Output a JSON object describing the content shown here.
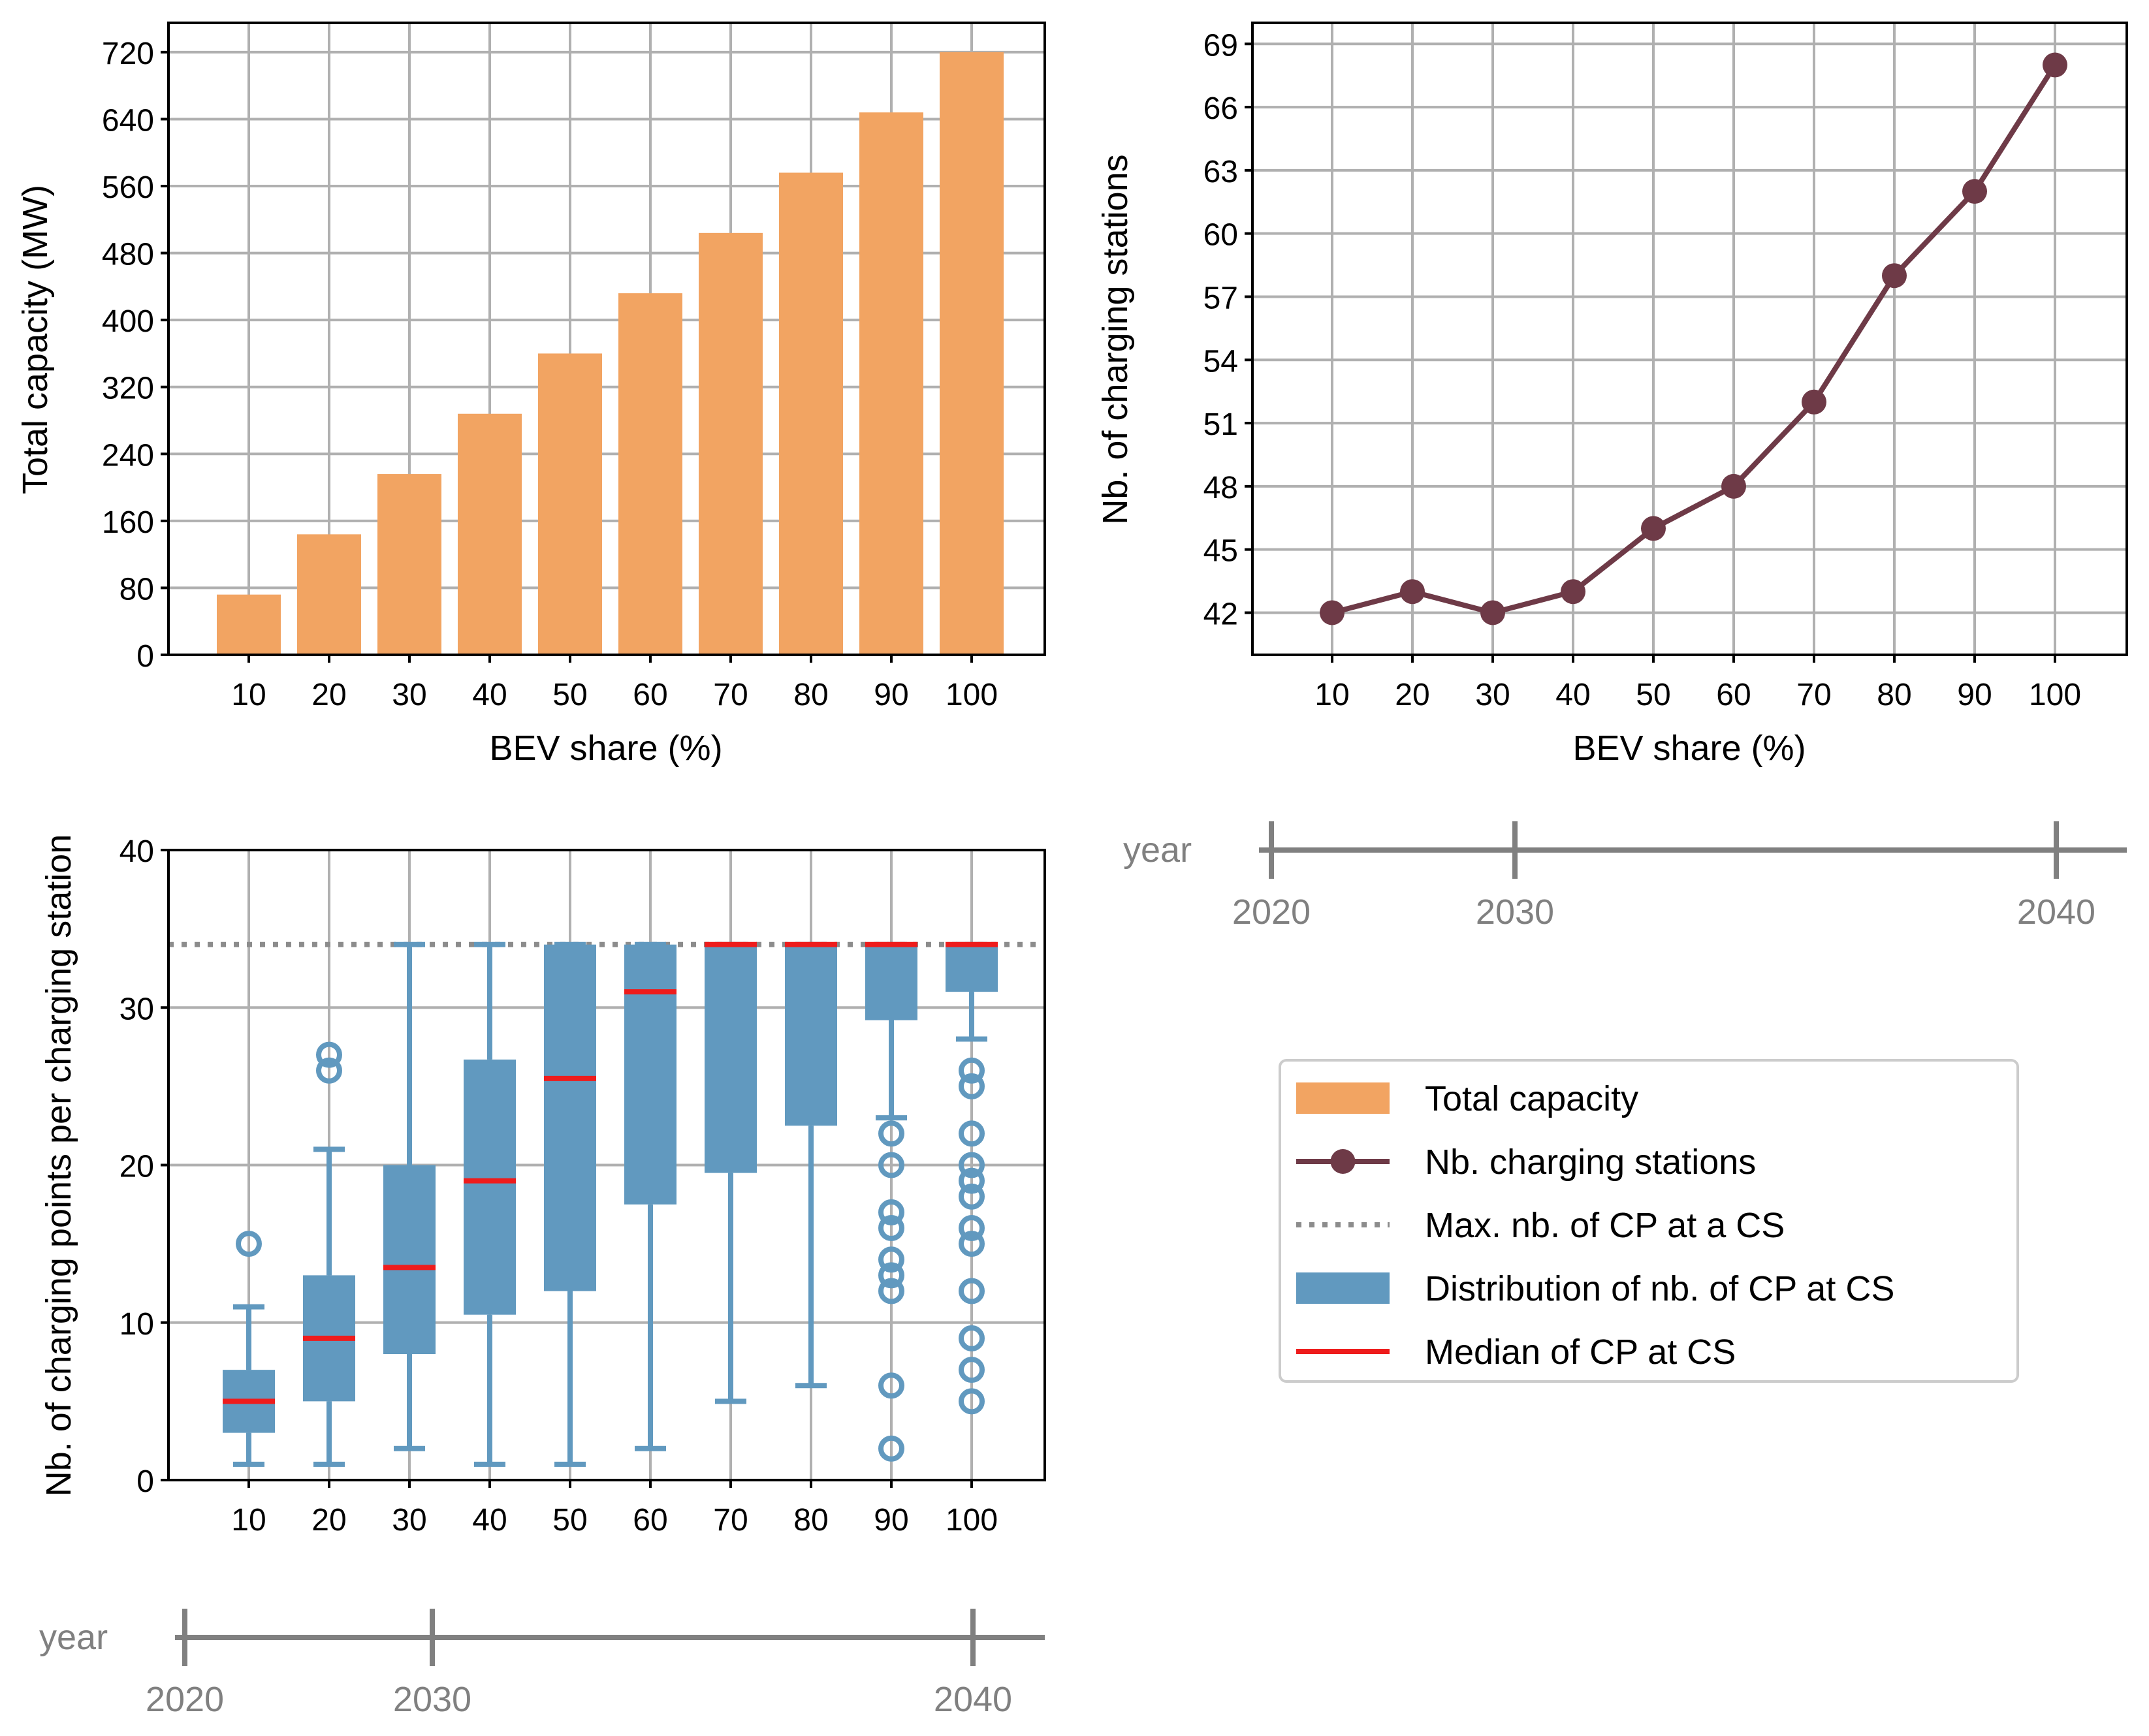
{
  "colors": {
    "bar": "#F2A462",
    "line": "#6E3A47",
    "box": "#6199BF",
    "median": "#EE1C1C",
    "maxline": "#8C8C8C",
    "timeline": "#808080",
    "grid": "#B0B0B0",
    "axis": "#000000"
  },
  "chart_data": [
    {
      "type": "bar",
      "name": "total-capacity",
      "categories": [
        "10",
        "20",
        "30",
        "40",
        "50",
        "60",
        "70",
        "80",
        "90",
        "100"
      ],
      "values": [
        72,
        144,
        216,
        288,
        360,
        432,
        504,
        576,
        648,
        720
      ],
      "xlabel": "BEV share (%)",
      "ylabel": "Total capacity (MW)",
      "ylim": [
        0,
        755
      ],
      "yticks": [
        0,
        80,
        160,
        240,
        320,
        400,
        480,
        560,
        640,
        720
      ],
      "grid": true
    },
    {
      "type": "line",
      "name": "charging-stations",
      "categories": [
        "10",
        "20",
        "30",
        "40",
        "50",
        "60",
        "70",
        "80",
        "90",
        "100"
      ],
      "values": [
        42,
        43,
        42,
        43,
        46,
        48,
        52,
        58,
        62,
        68
      ],
      "xlabel": "BEV share (%)",
      "ylabel": "Nb. of charging stations",
      "ylim": [
        40,
        70
      ],
      "yticks": [
        42,
        45,
        48,
        51,
        54,
        57,
        60,
        63,
        66,
        69
      ],
      "grid": true
    },
    {
      "type": "box",
      "name": "cp-per-station",
      "categories": [
        "10",
        "20",
        "30",
        "40",
        "50",
        "60",
        "70",
        "80",
        "90",
        "100"
      ],
      "boxes": [
        {
          "q1": 3,
          "median": 5,
          "q3": 7,
          "whislo": 1,
          "whishi": 11,
          "fliers": [
            15
          ]
        },
        {
          "q1": 5,
          "median": 9,
          "q3": 13,
          "whislo": 1,
          "whishi": 21,
          "fliers": [
            26,
            27
          ]
        },
        {
          "q1": 8,
          "median": 13.5,
          "q3": 20,
          "whislo": 2,
          "whishi": 34,
          "fliers": []
        },
        {
          "q1": 10.5,
          "median": 19,
          "q3": 26.7,
          "whislo": 1,
          "whishi": 34,
          "fliers": []
        },
        {
          "q1": 12,
          "median": 25.5,
          "q3": 34,
          "whislo": 1,
          "whishi": 34,
          "fliers": []
        },
        {
          "q1": 17.5,
          "median": 31,
          "q3": 34,
          "whislo": 2,
          "whishi": 34,
          "fliers": []
        },
        {
          "q1": 19.5,
          "median": 34,
          "q3": 34,
          "whislo": 5,
          "whishi": 34,
          "fliers": []
        },
        {
          "q1": 22.5,
          "median": 34,
          "q3": 34,
          "whislo": 6,
          "whishi": 34,
          "fliers": []
        },
        {
          "q1": 29.2,
          "median": 34,
          "q3": 34,
          "whislo": 23,
          "whishi": 34,
          "fliers": [
            2,
            6,
            12,
            13,
            14,
            16,
            17,
            20,
            22
          ]
        },
        {
          "q1": 31,
          "median": 34,
          "q3": 34,
          "whislo": 28,
          "whishi": 34,
          "fliers": [
            5,
            7,
            9,
            12,
            15,
            16,
            18,
            19,
            20,
            22,
            25,
            26
          ]
        }
      ],
      "max_cp": 34,
      "xlabel": "",
      "ylabel": "Nb. of charging points per charging station",
      "ylim": [
        0,
        40
      ],
      "yticks": [
        0,
        10,
        20,
        30,
        40
      ],
      "grid": true
    }
  ],
  "timelines": {
    "label": "year",
    "ticks": [
      "2020",
      "2030",
      "2040"
    ]
  },
  "legend": {
    "placement": "lower-right",
    "items": [
      {
        "label": "Total capacity",
        "kind": "bar"
      },
      {
        "label": "Nb. charging stations",
        "kind": "line"
      },
      {
        "label": "Max. nb. of CP at a CS",
        "kind": "maxline"
      },
      {
        "label": "Distribution of nb. of CP at CS",
        "kind": "box"
      },
      {
        "label": "Median of CP at CS",
        "kind": "median"
      }
    ]
  }
}
